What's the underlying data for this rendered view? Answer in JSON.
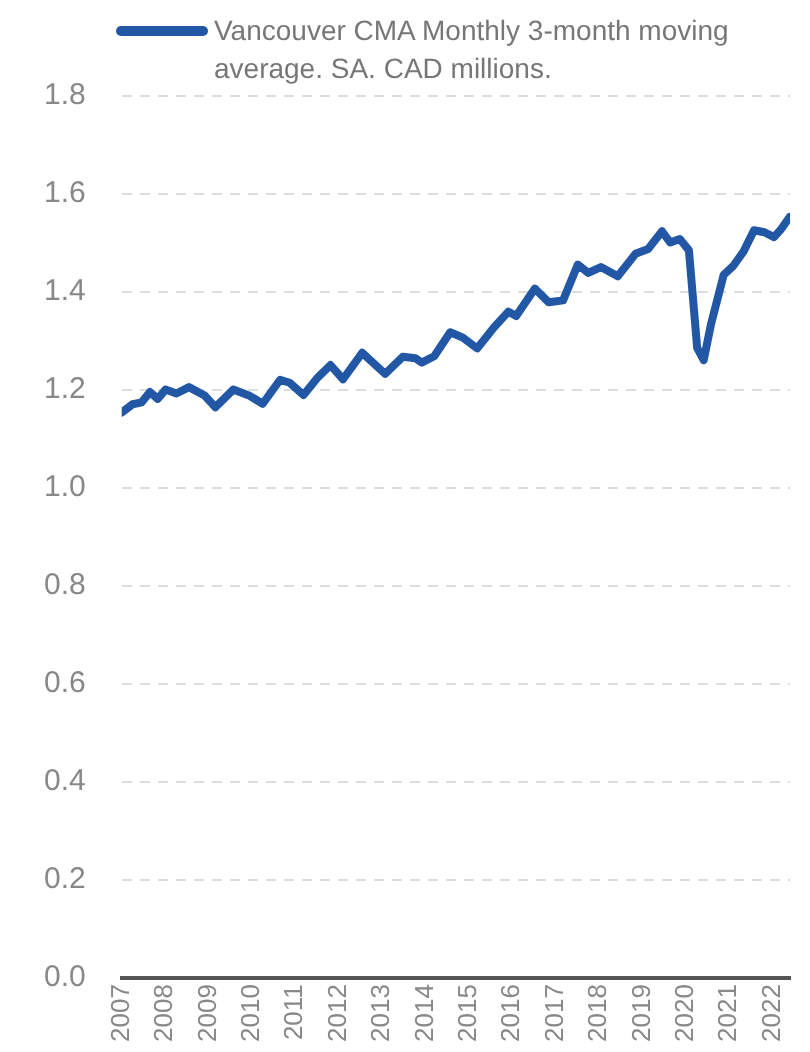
{
  "chart_data": {
    "type": "line",
    "xlim": [
      2007,
      2022.4
    ],
    "xticks": [
      2007,
      2008,
      2009,
      2010,
      2011,
      2012,
      2013,
      2014,
      2015,
      2016,
      2017,
      2018,
      2019,
      2020,
      2021,
      2022
    ],
    "ylim": [
      0,
      1.8
    ],
    "yticks": [
      {
        "value": 0,
        "label": "0.0"
      },
      0.2,
      0.4,
      0.6,
      0.8,
      {
        "value": 1,
        "label": "1.0"
      },
      1.2,
      1.4,
      1.6,
      1.8
    ],
    "grid": "y",
    "legend": "top",
    "marker": "none",
    "line_style": "solid",
    "series": [
      {
        "name": "Vancouver CMA Monthly 3-month moving average. SA. CAD millions.",
        "color": "#2257a6",
        "x": [
          2007.0,
          2007.25,
          2007.46,
          2007.65,
          2007.83,
          2008.01,
          2008.26,
          2008.55,
          2008.91,
          2009.16,
          2009.57,
          2009.93,
          2010.25,
          2010.65,
          2010.87,
          2011.19,
          2011.52,
          2011.81,
          2012.1,
          2012.54,
          2013.07,
          2013.48,
          2013.77,
          2013.91,
          2014.2,
          2014.57,
          2014.86,
          2015.19,
          2015.58,
          2015.91,
          2016.09,
          2016.52,
          2016.84,
          2017.17,
          2017.51,
          2017.75,
          2018.04,
          2018.43,
          2018.84,
          2019.13,
          2019.45,
          2019.64,
          2019.86,
          2020.07,
          2020.26,
          2020.41,
          2020.58,
          2020.87,
          2021.09,
          2021.33,
          2021.57,
          2021.81,
          2022.03,
          2022.2,
          2022.39
        ],
        "values": [
          1.154,
          1.171,
          1.175,
          1.196,
          1.182,
          1.201,
          1.193,
          1.206,
          1.189,
          1.165,
          1.201,
          1.189,
          1.172,
          1.221,
          1.215,
          1.19,
          1.226,
          1.251,
          1.222,
          1.276,
          1.233,
          1.268,
          1.265,
          1.256,
          1.269,
          1.318,
          1.307,
          1.285,
          1.328,
          1.36,
          1.351,
          1.407,
          1.379,
          1.383,
          1.456,
          1.439,
          1.451,
          1.432,
          1.478,
          1.488,
          1.524,
          1.501,
          1.508,
          1.485,
          1.286,
          1.261,
          1.335,
          1.435,
          1.453,
          1.483,
          1.526,
          1.522,
          1.512,
          1.529,
          1.553
        ]
      }
    ]
  }
}
